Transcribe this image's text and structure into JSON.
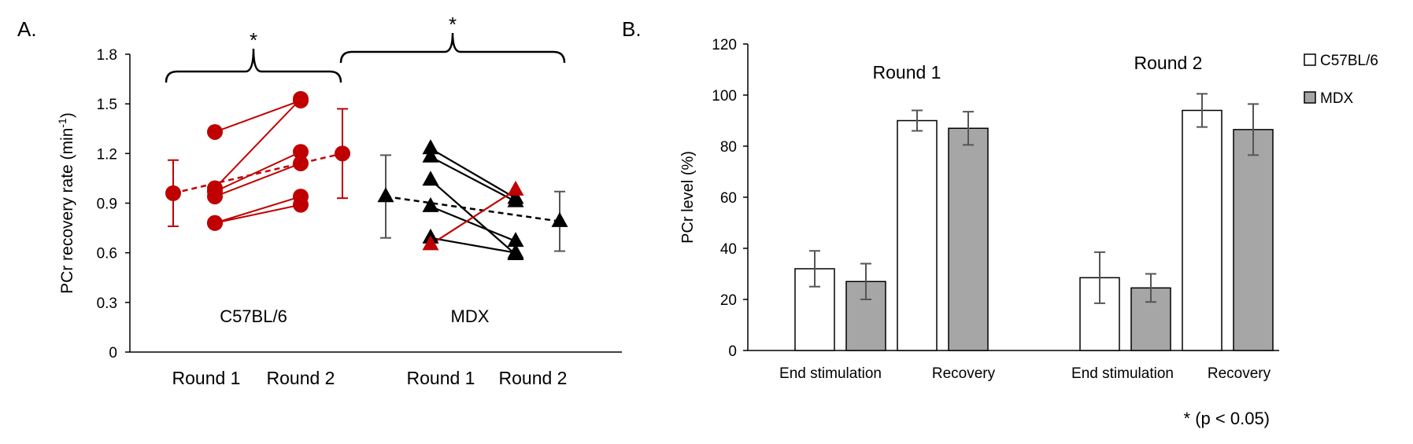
{
  "figure": {
    "panel_a_label": "A.",
    "panel_b_label": "B.",
    "footnote": "* (p < 0.05)"
  },
  "chart_data": [
    {
      "type": "scatter",
      "panel": "A.",
      "ylabel": "PCr recovery rate (min",
      "ylabel_sup": "-1",
      "ylabel_tail": ")",
      "ylim": [
        0,
        1.8
      ],
      "yticks": [
        "0",
        "0.3",
        "0.6",
        "0.9",
        "1.2",
        "1.5",
        "1.8"
      ],
      "xlabels": [
        "Round 1",
        "Round 2",
        "Round 1",
        "Round 2"
      ],
      "groups": [
        {
          "name": "C57BL/6",
          "color": "#c00000",
          "marker": "circle",
          "mean": {
            "round1": 0.96,
            "round1_err": 0.2,
            "round2": 1.2,
            "round2_err": 0.27
          },
          "subjects": [
            {
              "round1": 1.33,
              "round2": 1.52
            },
            {
              "round1": 0.99,
              "round2": 1.53
            },
            {
              "round1": 0.97,
              "round2": 1.21
            },
            {
              "round1": 0.94,
              "round2": 1.14
            },
            {
              "round1": 0.78,
              "round2": 0.94
            },
            {
              "round1": 0.78,
              "round2": 0.89
            }
          ]
        },
        {
          "name": "MDX",
          "color": "#000000",
          "marker": "triangle",
          "mean": {
            "round1": 0.94,
            "round1_err": 0.25,
            "round2": 0.79,
            "round2_err": 0.18
          },
          "subjects": [
            {
              "round1": 1.23,
              "round2": 0.93,
              "color": "#000000"
            },
            {
              "round1": 1.18,
              "round2": 0.91,
              "color": "#000000"
            },
            {
              "round1": 1.04,
              "round2": 0.59,
              "color": "#000000"
            },
            {
              "round1": 0.88,
              "round2": 0.67,
              "color": "#000000"
            },
            {
              "round1": 0.69,
              "round2": 0.6,
              "color": "#000000"
            },
            {
              "round1": 0.65,
              "round2": 0.98,
              "color": "#c00000"
            }
          ]
        }
      ],
      "significance": [
        {
          "label": "*",
          "between": [
            "C57BL/6 Round 1",
            "C57BL/6 Round 2"
          ]
        },
        {
          "label": "*",
          "between": [
            "C57BL/6 Round 2",
            "MDX Round 2"
          ]
        }
      ]
    },
    {
      "type": "bar",
      "panel": "B.",
      "ylabel": "PCr level (%)",
      "ylim": [
        0,
        120
      ],
      "yticks": [
        "0",
        "20",
        "40",
        "60",
        "80",
        "100",
        "120"
      ],
      "categories": [
        "End stimulation",
        "Recovery",
        "End stimulation",
        "Recovery"
      ],
      "rounds": [
        "Round 1",
        "Round 2"
      ],
      "series": [
        {
          "name": "C57BL/6",
          "color": "#ffffff",
          "values": [
            32,
            90,
            28.5,
            94
          ],
          "errors": [
            7,
            4,
            10,
            6.5
          ]
        },
        {
          "name": "MDX",
          "color": "#a6a6a6",
          "values": [
            27,
            87,
            24.5,
            86.5
          ],
          "errors": [
            7,
            6.5,
            5.5,
            10
          ]
        }
      ],
      "legend": "right"
    }
  ]
}
